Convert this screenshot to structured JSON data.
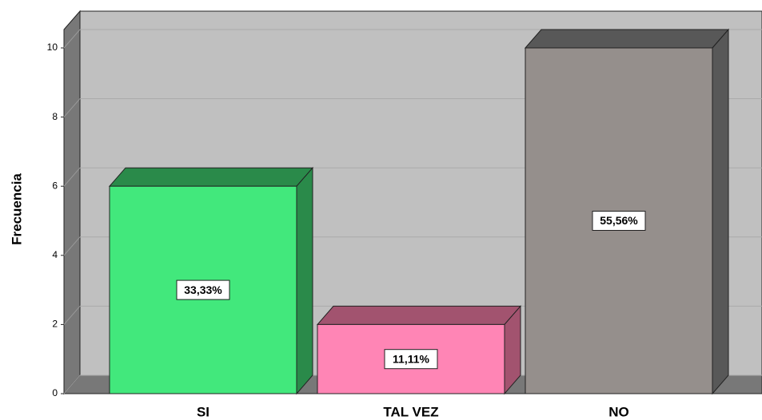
{
  "chart_data": {
    "type": "bar3d",
    "y_label": "Frecuencia",
    "categories": [
      "SI",
      "TAL VEZ",
      "NO"
    ],
    "values": [
      6,
      2,
      10
    ],
    "annotations": [
      "33,33%",
      "11,11%",
      "55,56%"
    ],
    "colors": [
      "#42e87c",
      "#ff85b5",
      "#958f8c"
    ],
    "side_colors": [
      "#2a8a4a",
      "#a2536f",
      "#585858"
    ],
    "ylim": [
      0,
      10
    ],
    "yticks": [
      0,
      2,
      4,
      6,
      8,
      10
    ],
    "grid": true
  }
}
